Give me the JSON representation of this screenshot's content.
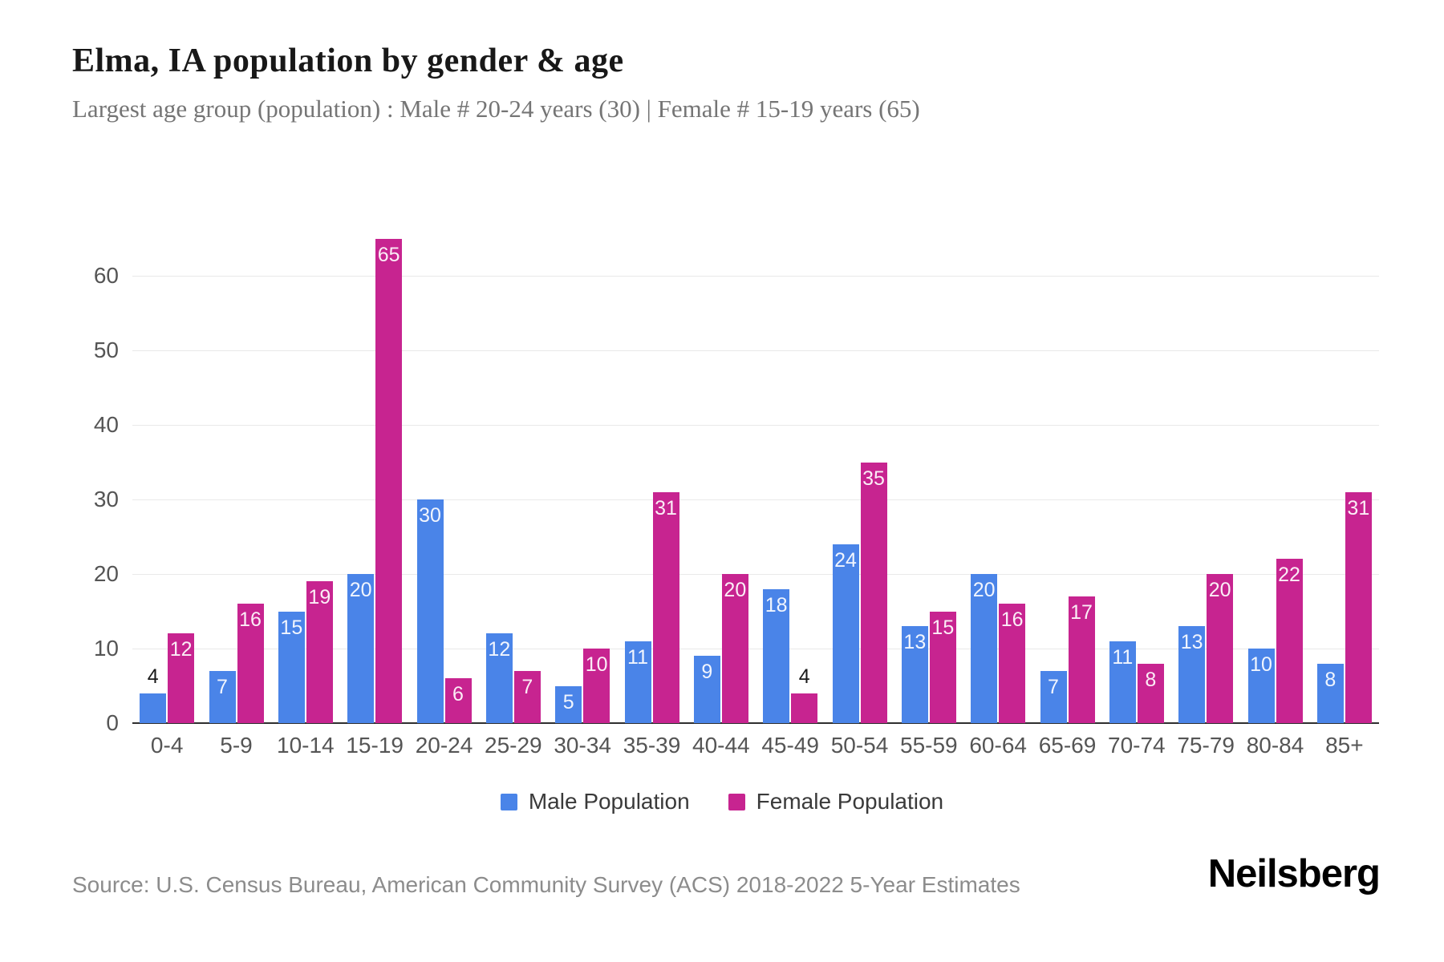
{
  "header": {
    "title": "Elma, IA population by gender & age",
    "subtitle": "Largest age group (population) : Male # 20-24 years (30) | Female # 15-19 years (65)"
  },
  "chart_data": {
    "type": "bar",
    "title": "Elma, IA population by gender & age",
    "xlabel": "",
    "ylabel": "",
    "categories": [
      "0-4",
      "5-9",
      "10-14",
      "15-19",
      "20-24",
      "25-29",
      "30-34",
      "35-39",
      "40-44",
      "45-49",
      "50-54",
      "55-59",
      "60-64",
      "65-69",
      "70-74",
      "75-79",
      "80-84",
      "85+"
    ],
    "series": [
      {
        "name": "Male Population",
        "color": "#4a84e8",
        "values": [
          4,
          7,
          15,
          20,
          30,
          12,
          5,
          11,
          9,
          18,
          24,
          13,
          20,
          7,
          11,
          13,
          10,
          8
        ]
      },
      {
        "name": "Female Population",
        "color": "#c72490",
        "values": [
          12,
          16,
          19,
          65,
          6,
          7,
          10,
          31,
          20,
          4,
          35,
          15,
          16,
          17,
          8,
          20,
          22,
          31
        ]
      }
    ],
    "ylim": [
      0,
      65
    ],
    "yticks": [
      0,
      10,
      20,
      30,
      40,
      50,
      60
    ],
    "grid": "horizontal",
    "legend_position": "bottom-center",
    "bar_label_inside_min_value": 5,
    "colors": {
      "grid": "#e9e9e9",
      "axis": "#2f2f2f",
      "tick_text": "#555555",
      "label_inside": "#ffffff",
      "label_outside": "#1a1a1a"
    }
  },
  "footer": {
    "source": "Source: U.S. Census Bureau, American Community Survey (ACS) 2018-2022 5-Year Estimates",
    "brand": "Neilsberg"
  }
}
